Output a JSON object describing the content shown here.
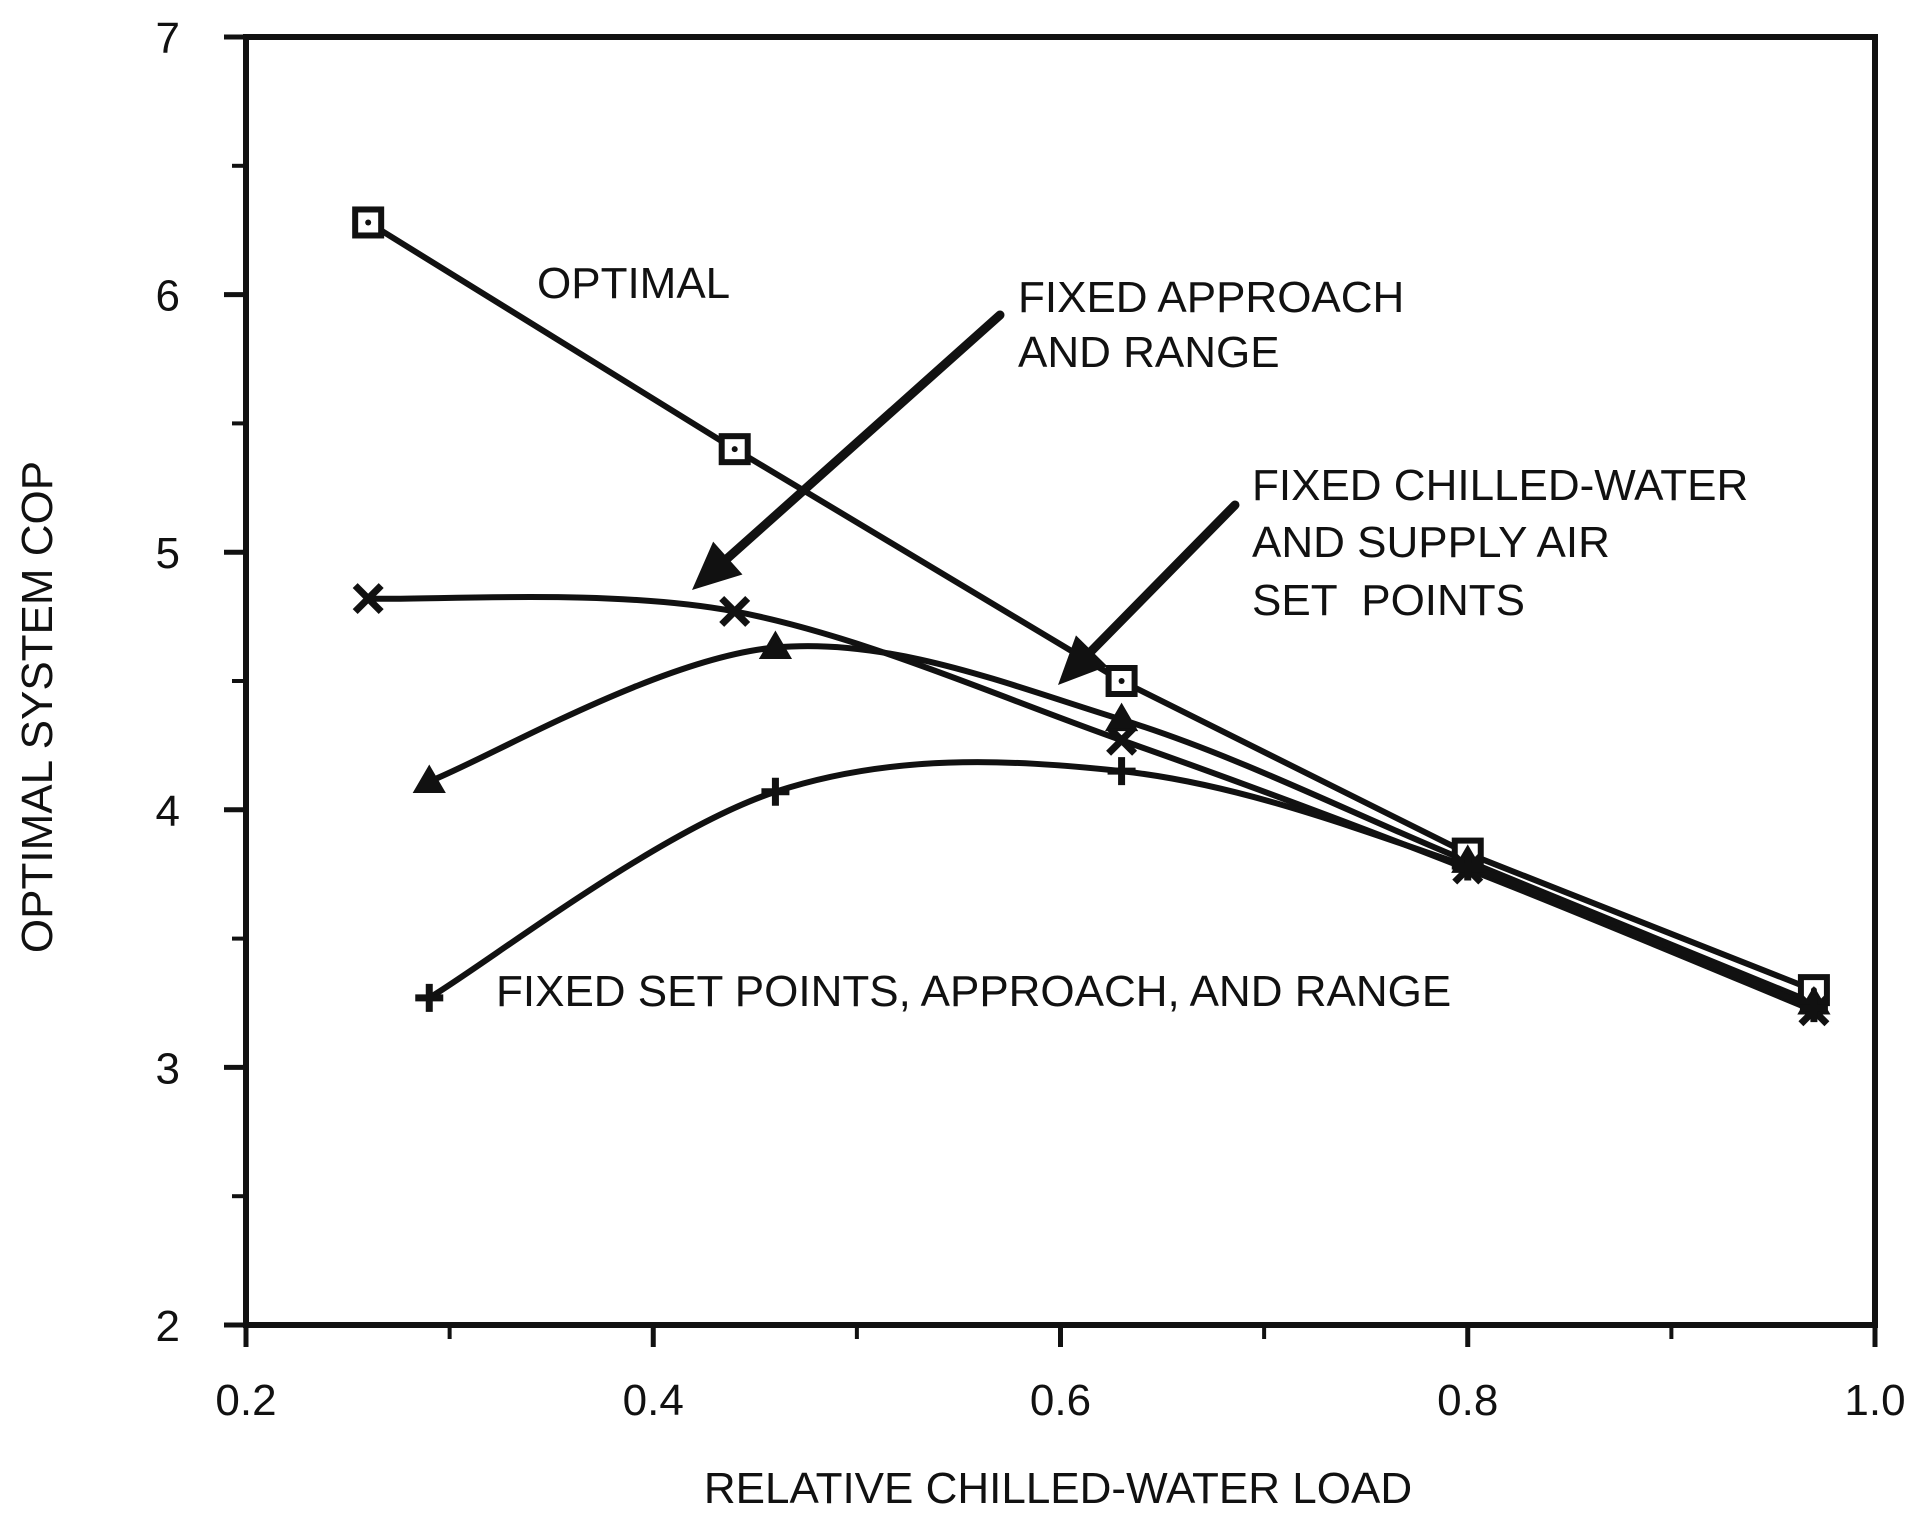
{
  "chart_data": {
    "type": "line",
    "title": "",
    "xlabel": "RELATIVE CHILLED-WATER LOAD",
    "ylabel": "OPTIMAL SYSTEM COP",
    "xlim": [
      0.2,
      1.0
    ],
    "ylim": [
      2,
      7
    ],
    "xticks": [
      "0.2",
      "0.4",
      "0.6",
      "0.8",
      "1.0"
    ],
    "yticks": [
      "2",
      "3",
      "4",
      "5",
      "6",
      "7"
    ],
    "grid": false,
    "series": [
      {
        "marker": "square",
        "x": [
          0.26,
          0.44,
          0.63,
          0.8,
          0.97
        ],
        "y": [
          6.28,
          5.4,
          4.5,
          3.83,
          3.3
        ]
      },
      {
        "marker": "x",
        "x": [
          0.26,
          0.44,
          0.63,
          0.8,
          0.97
        ],
        "y": [
          4.82,
          4.77,
          4.27,
          3.77,
          3.22
        ]
      },
      {
        "marker": "triangle",
        "x": [
          0.29,
          0.46,
          0.63,
          0.8,
          0.97
        ],
        "y": [
          4.11,
          4.63,
          4.35,
          3.8,
          3.25
        ]
      },
      {
        "marker": "plus",
        "x": [
          0.29,
          0.46,
          0.63,
          0.8,
          0.97
        ],
        "y": [
          3.27,
          4.07,
          4.15,
          3.78,
          3.23
        ]
      }
    ],
    "annotations": [
      "OPTIMAL",
      "FIXED APPROACH",
      "AND RANGE",
      "FIXED CHILLED-WATER",
      "AND SUPPLY AIR",
      "SET  POINTS",
      "FIXED SET POINTS, APPROACH, AND RANGE"
    ]
  }
}
